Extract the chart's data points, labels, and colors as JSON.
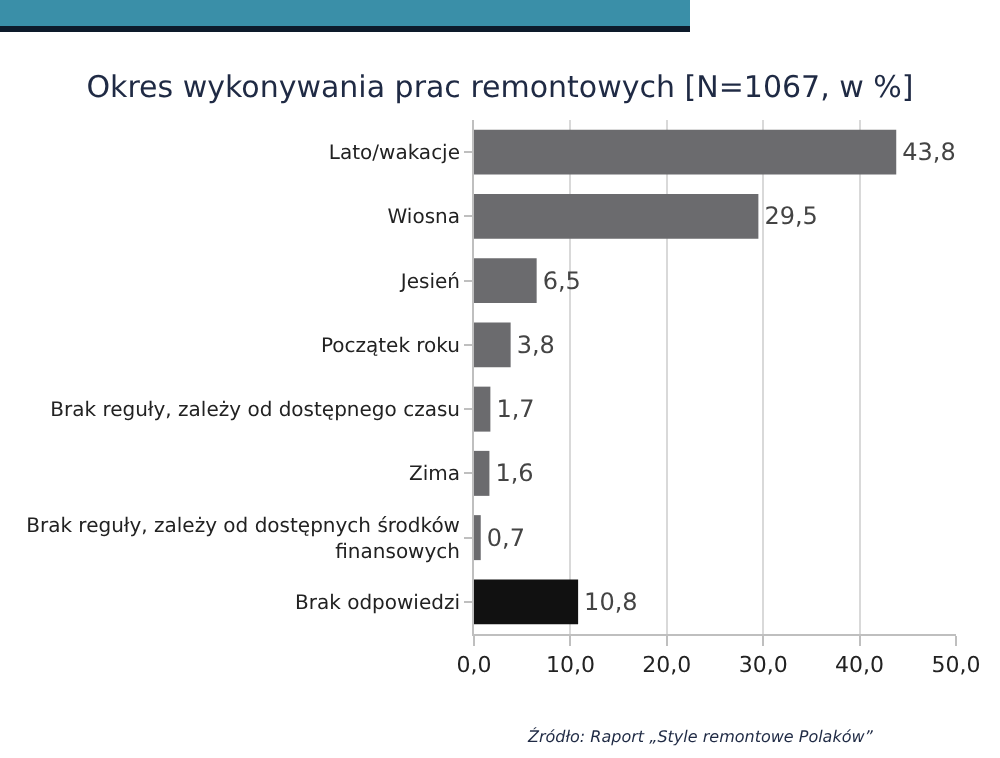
{
  "chart_data": {
    "type": "bar",
    "orientation": "horizontal",
    "title": "Okres wykonywania prac remontowych [N=1067, w %]",
    "categories": [
      "Lato/wakacje",
      "Wiosna",
      "Jesień",
      "Początek roku",
      "Brak reguły, zależy od dostępnego czasu",
      "Zima",
      "Brak reguły, zależy od dostępnych środków finansowych",
      "Brak odpowiedzi"
    ],
    "values": [
      43.8,
      29.5,
      6.5,
      3.8,
      1.7,
      1.6,
      0.7,
      10.8
    ],
    "colors": [
      "#6b6b6e",
      "#6b6b6e",
      "#6b6b6e",
      "#6b6b6e",
      "#6b6b6e",
      "#6b6b6e",
      "#6b6b6e",
      "#111111"
    ],
    "value_labels": [
      "43,8",
      "29,5",
      "6,5",
      "3,8",
      "1,7",
      "1,6",
      "0,7",
      "10,8"
    ],
    "xlim": [
      0,
      50
    ],
    "xticks": [
      {
        "value": 0,
        "label": "0,0"
      },
      {
        "value": 10,
        "label": "10,0"
      },
      {
        "value": 20,
        "label": "20,0"
      },
      {
        "value": 30,
        "label": "30,0"
      },
      {
        "value": 40,
        "label": "40,0"
      },
      {
        "value": 50,
        "label": "50,0"
      }
    ],
    "grid": "x",
    "annotations": [
      "Źródło: Raport „Style remontowe Polaków”"
    ]
  }
}
